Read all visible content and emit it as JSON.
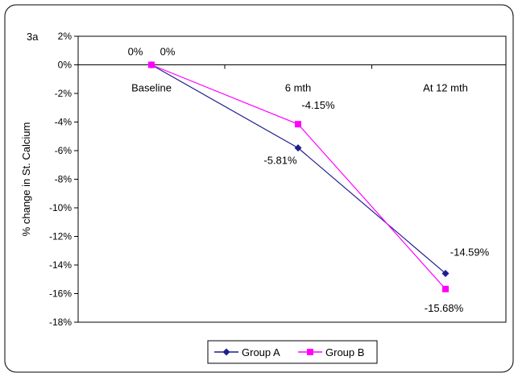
{
  "panel_label": "3a",
  "chart_data": {
    "type": "line",
    "categories": [
      "Baseline",
      "6 mth",
      "At 12 mth"
    ],
    "ylabel": "% change in St. Calcium",
    "ylim": [
      -18,
      2
    ],
    "yticks": [
      "2%",
      "0%",
      "-2%",
      "-4%",
      "-6%",
      "-8%",
      "-10%",
      "-12%",
      "-14%",
      "-16%",
      "-18%"
    ],
    "grid": false,
    "legend_position": "bottom-center",
    "series": [
      {
        "name": "Group A",
        "values": [
          0,
          -5.81,
          -14.59
        ],
        "labels": [
          "0%",
          "-5.81%",
          "-14.59%"
        ],
        "color": "#1f1f8f",
        "marker": "diamond"
      },
      {
        "name": "Group B",
        "values": [
          0,
          -4.15,
          -15.68
        ],
        "labels": [
          "0%",
          "-4.15%",
          "-15.68%"
        ],
        "color": "#ff00ff",
        "marker": "square"
      }
    ]
  }
}
